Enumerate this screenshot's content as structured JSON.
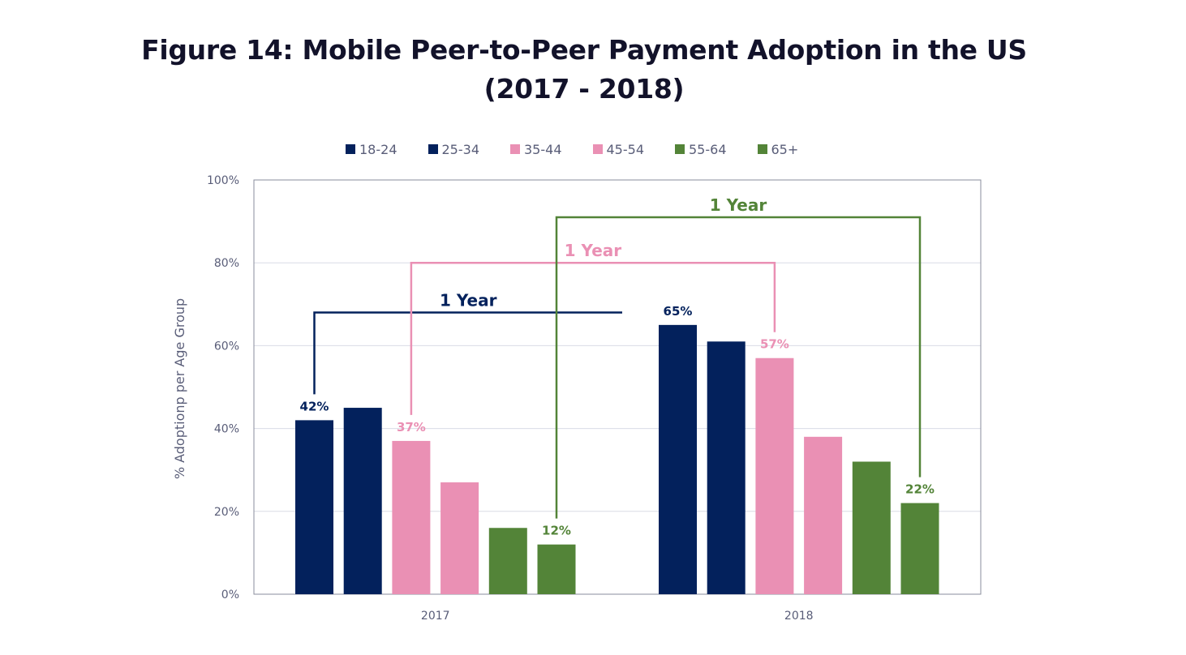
{
  "chart_data": {
    "type": "bar",
    "title_line1": "Figure 14: Mobile Peer-to-Peer Payment Adoption in the US",
    "title_line2": "(2017 - 2018)",
    "ylabel": "% Adoptionp per Age Group",
    "xlabel": "",
    "ylim": [
      0,
      100
    ],
    "yticks": [
      "0%",
      "20%",
      "40%",
      "60%",
      "80%",
      "100%"
    ],
    "ytick_values": [
      0,
      20,
      40,
      60,
      80,
      100
    ],
    "categories": [
      "2017",
      "2018"
    ],
    "legend_position": "top",
    "grid": true,
    "series": [
      {
        "name": "18-24",
        "color": "#03215c",
        "values": [
          42,
          65
        ]
      },
      {
        "name": "25-34",
        "color": "#03215c",
        "values": [
          45,
          61
        ]
      },
      {
        "name": "35-44",
        "color": "#ea90b4",
        "values": [
          37,
          57
        ]
      },
      {
        "name": "45-54",
        "color": "#ea90b4",
        "values": [
          27,
          38
        ]
      },
      {
        "name": "55-64",
        "color": "#538438",
        "values": [
          16,
          32
        ]
      },
      {
        "name": "65+",
        "color": "#538438",
        "values": [
          12,
          22
        ]
      }
    ],
    "data_labels": [
      {
        "text": "42%",
        "series": 0,
        "category": 0,
        "color": "#03215c"
      },
      {
        "text": "37%",
        "series": 2,
        "category": 0,
        "color": "#ea90b4"
      },
      {
        "text": "12%",
        "series": 5,
        "category": 0,
        "color": "#538438"
      },
      {
        "text": "65%",
        "series": 0,
        "category": 1,
        "color": "#03215c"
      },
      {
        "text": "57%",
        "series": 2,
        "category": 1,
        "color": "#ea90b4"
      },
      {
        "text": "22%",
        "series": 5,
        "category": 1,
        "color": "#538438"
      }
    ],
    "annotations": [
      {
        "text": "1 Year",
        "color": "#03215c",
        "from_series": 0,
        "to_series": 0,
        "open_end": true,
        "level": 68
      },
      {
        "text": "1 Year",
        "color": "#ea90b4",
        "from_series": 2,
        "to_series": 2,
        "open_end": false,
        "level": 80
      },
      {
        "text": "1 Year",
        "color": "#538438",
        "from_series": 5,
        "to_series": 5,
        "open_end": false,
        "level": 91
      }
    ]
  }
}
